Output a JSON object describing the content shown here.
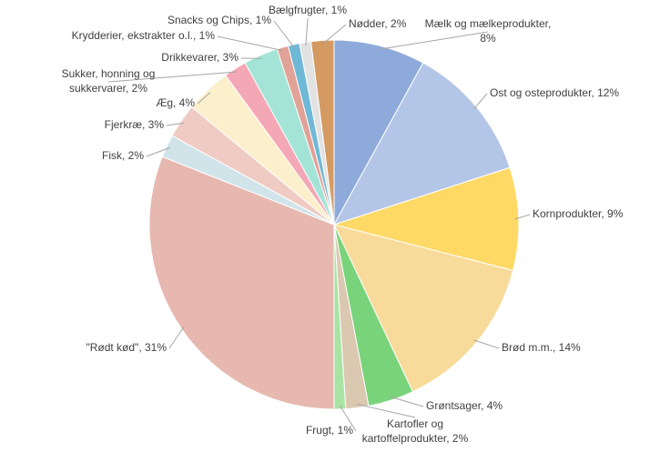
{
  "chart_data": {
    "type": "pie",
    "values": [
      8,
      12,
      9,
      14,
      4,
      2,
      1,
      31,
      2,
      3,
      4,
      2,
      3,
      1,
      1,
      1,
      2
    ],
    "value_labels": [
      "Mælk og mælkeprodukter,\n8%",
      "Ost og osteprodukter, 12%",
      "Kornprodukter, 9%",
      "Brød m.m., 14%",
      "Grøntsager, 4%",
      "Kartofler og\nkartoffelprodukter, 2%",
      "Frugt, 1%",
      "\"Rødt kød\", 31%",
      "Fisk, 2%",
      "Fjerkræ, 3%",
      "Æg, 4%",
      "Sukker, honning og\nsukkervarer, 2%",
      "Drikkevarer, 3%",
      "Krydderier, ekstrakter o.l., 1%",
      "Snacks og Chips, 1%",
      "Bælgfrugter, 1%",
      "Nødder, 2%"
    ],
    "colors": [
      "#8eaadb",
      "#b4c6e7",
      "#ffd966",
      "#f8db9a",
      "#79d37a",
      "#dbc8b0",
      "#a9e4a5",
      "#e6b8af",
      "#d0e4ea",
      "#efcbc3",
      "#fbefcc",
      "#f4a7b5",
      "#a3e4d7",
      "#e1a297",
      "#6fb8d6",
      "#e2e2e2",
      "#d49a62"
    ]
  }
}
